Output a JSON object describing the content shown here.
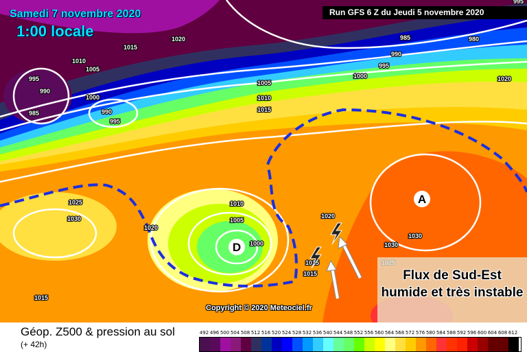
{
  "header": {
    "date": "Samedi 7 novembre 2020",
    "time": "1:00 locale",
    "run": "Run GFS 6 Z du Jeudi 5 novembre 2020"
  },
  "map": {
    "low_marker": "D",
    "high_marker": "A",
    "isobar_labels": [
      "1020",
      "1015",
      "1010",
      "1005",
      "995",
      "990",
      "985",
      "1000",
      "990",
      "995",
      "985",
      "980",
      "990",
      "995",
      "1000",
      "1005",
      "1010",
      "1015",
      "1025",
      "1030",
      "1020",
      "1010",
      "1005",
      "1000",
      "1020",
      "1015",
      "1015",
      "1030",
      "1030",
      "1025",
      "1015",
      "1020",
      "995"
    ],
    "icons": [
      "lightning-icon",
      "lightning-icon",
      "wind-arrow-icon",
      "wind-arrow-icon"
    ],
    "jet_line_color": "#1a2fe0",
    "annotation_line1": "Flux de Sud-Est",
    "annotation_line2": "humide et très instable",
    "copyright": "Copyright © 2020 Meteociel.fr"
  },
  "footer": {
    "title": "Géop. Z500 & pression au sol",
    "subtitle": "(+ 42h)",
    "legend_ticks": [
      "492",
      "496",
      "500",
      "504",
      "508",
      "512",
      "516",
      "520",
      "524",
      "528",
      "532",
      "536",
      "540",
      "544",
      "548",
      "552",
      "556",
      "560",
      "564",
      "568",
      "572",
      "576",
      "580",
      "584",
      "588",
      "592",
      "596",
      "600",
      "604",
      "608",
      "612"
    ],
    "legend_colors": [
      "#4a1050",
      "#5a0a5a",
      "#a010a0",
      "#8a1a7a",
      "#600040",
      "#303060",
      "#003399",
      "#0000c0",
      "#0000ff",
      "#0050ff",
      "#0099ff",
      "#33ccff",
      "#66ffff",
      "#66ff99",
      "#66ff66",
      "#66ff00",
      "#ccff00",
      "#ffff00",
      "#ffff80",
      "#ffe040",
      "#ffcc00",
      "#ff9900",
      "#ff6600",
      "#ff3333",
      "#ff3300",
      "#ff2200",
      "#cc0000",
      "#990000",
      "#660000",
      "#660000",
      "#000000"
    ]
  }
}
